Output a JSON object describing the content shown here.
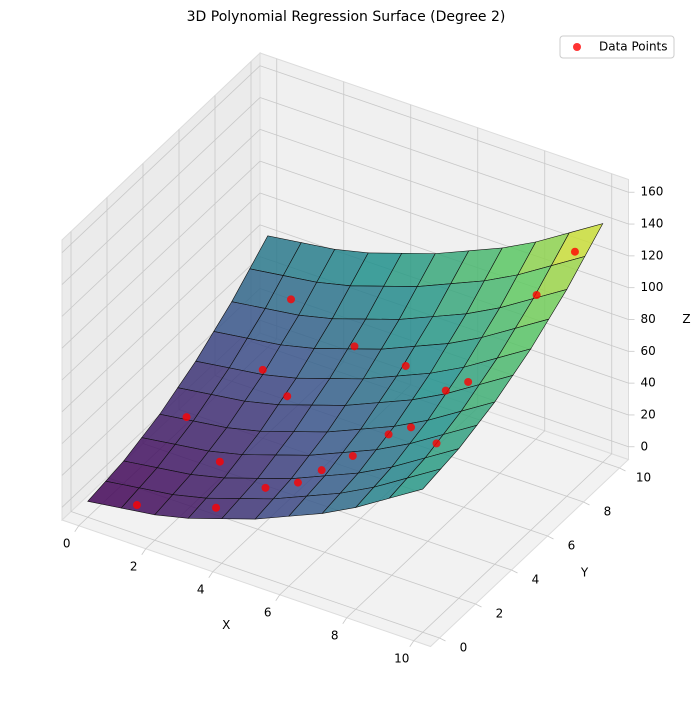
{
  "chart_data": {
    "type": "surface3d",
    "title": "3D Polynomial Regression Surface (Degree 2)",
    "xlabel": "X",
    "ylabel": "Y",
    "zlabel": "Z",
    "xlim": [
      -0.5,
      10.5
    ],
    "ylim": [
      -0.5,
      10.5
    ],
    "zlim": [
      -8,
      168
    ],
    "xticks": [
      0,
      2,
      4,
      6,
      8,
      10
    ],
    "yticks": [
      0,
      2,
      4,
      6,
      8,
      10
    ],
    "zticks": [
      0,
      20,
      40,
      60,
      80,
      100,
      120,
      140,
      160
    ],
    "grid": true,
    "legend": "upper right",
    "surface": {
      "x": [
        0,
        1,
        2,
        3,
        4,
        5,
        6,
        7,
        8,
        9,
        10
      ],
      "y": [
        0,
        1,
        2,
        3,
        4,
        5,
        6,
        7,
        8,
        9,
        10
      ],
      "z": [
        [
          2,
          5,
          8,
          13,
          20,
          27,
          36,
          45,
          56,
          69,
          82
        ],
        [
          4,
          7,
          10,
          15,
          22,
          29,
          38,
          47,
          58,
          71,
          84
        ],
        [
          6,
          9,
          12,
          17,
          24,
          31,
          40,
          49,
          60,
          73,
          86
        ],
        [
          10,
          13,
          16,
          21,
          28,
          35,
          44,
          53,
          64,
          77,
          90
        ],
        [
          14,
          17,
          20,
          25,
          32,
          39,
          48,
          57,
          68,
          81,
          94
        ],
        [
          20,
          23,
          26,
          31,
          38,
          45,
          54,
          63,
          74,
          87,
          100
        ],
        [
          26,
          29,
          32,
          37,
          44,
          51,
          60,
          69,
          80,
          93,
          106
        ],
        [
          34,
          37,
          40,
          45,
          52,
          59,
          68,
          77,
          88,
          101,
          114
        ],
        [
          42,
          45,
          48,
          53,
          60,
          67,
          76,
          85,
          96,
          109,
          122
        ],
        [
          52,
          55,
          58,
          63,
          70,
          77,
          86,
          95,
          106,
          119,
          132
        ],
        [
          62,
          65,
          68,
          73,
          80,
          87,
          96,
          105,
          116,
          129,
          142
        ]
      ]
    },
    "series": [
      {
        "name": "Data Points",
        "color": "#ff0000",
        "x": [
          1.2,
          3.4,
          4.5,
          5.2,
          5.8,
          6.3,
          7.1,
          7.5,
          8.0,
          8.4,
          9.1,
          9.6,
          2.0,
          0.8,
          3.0,
          4.2,
          6.0,
          2.6,
          8.8,
          1.5
        ],
        "y": [
          0.5,
          0.8,
          1.5,
          2.0,
          2.2,
          3.0,
          3.5,
          4.0,
          5.0,
          5.5,
          8.0,
          9.2,
          6.0,
          4.0,
          5.5,
          7.0,
          6.5,
          2.5,
          3.0,
          8.5
        ],
        "z": [
          3,
          14,
          27,
          30,
          40,
          44,
          58,
          60,
          76,
          79,
          112,
          130,
          35,
          18,
          31,
          55,
          61,
          19,
          70,
          49
        ]
      }
    ]
  }
}
